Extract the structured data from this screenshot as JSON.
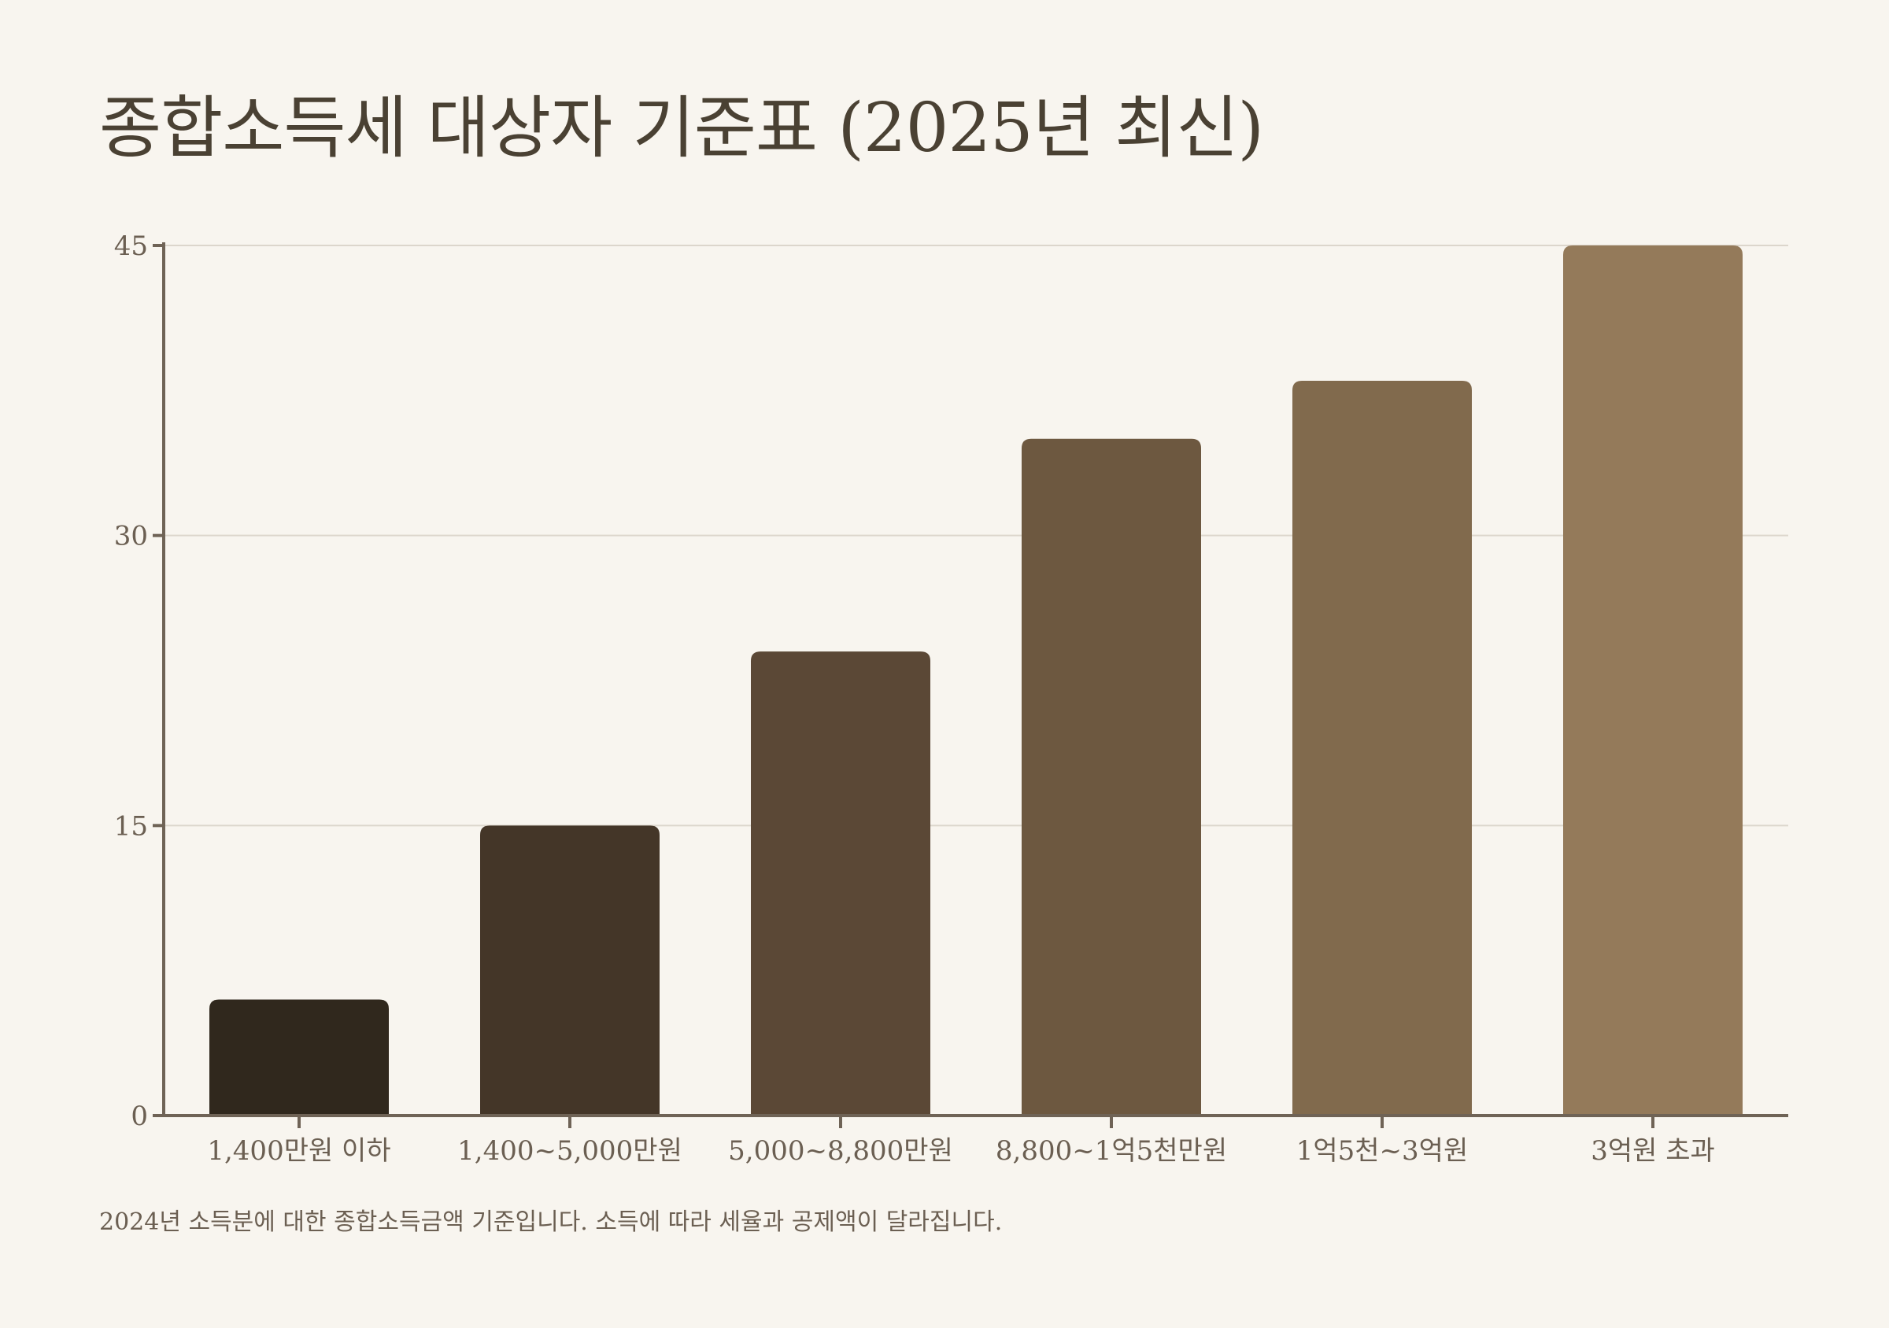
{
  "chart_data": {
    "type": "bar",
    "title": "종합소득세 대상자 기준표 (2025년 최신)",
    "categories": [
      "1,400만원 이하",
      "1,400~5,000만원",
      "5,000~8,800만원",
      "8,800~1억5천만원",
      "1억5천~3억원",
      "3억원 초과"
    ],
    "values": [
      6,
      15,
      24,
      35,
      38,
      45
    ],
    "xlabel": "",
    "ylabel": "",
    "ylim": [
      0,
      45
    ],
    "yticks": [
      0,
      15,
      30,
      45
    ],
    "grid": true,
    "legend": "none",
    "colors": [
      "#30281d",
      "#443628",
      "#5b4836",
      "#6d5840",
      "#816a4d",
      "#947a5a"
    ]
  },
  "footnote": "2024년 소득분에 대한 종합소득금액 기준입니다. 소득에 따라 세율과 공제액이 달라집니다."
}
